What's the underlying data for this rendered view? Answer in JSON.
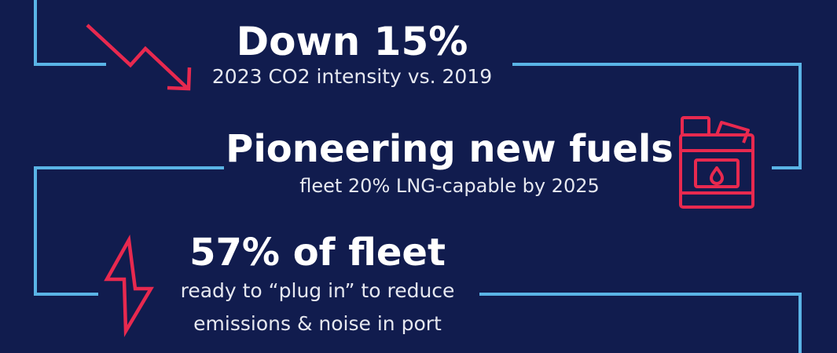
{
  "colors": {
    "background": "#111c4e",
    "line": "#5ab4e6",
    "accent": "#e8294f",
    "text": "#ffffff"
  },
  "stats": [
    {
      "headline": "Down 15%",
      "sub": "2023 CO2 intensity vs. 2019",
      "icon": "trend-down-arrow-icon"
    },
    {
      "headline": "Pioneering new fuels",
      "sub": "fleet 20% LNG-capable by 2025",
      "icon": "fuel-jerrycan-icon"
    },
    {
      "headline": "57% of fleet",
      "sub_lines": [
        "ready to “plug in” to reduce",
        "emissions & noise in port"
      ],
      "icon": "lightning-bolt-icon"
    }
  ]
}
